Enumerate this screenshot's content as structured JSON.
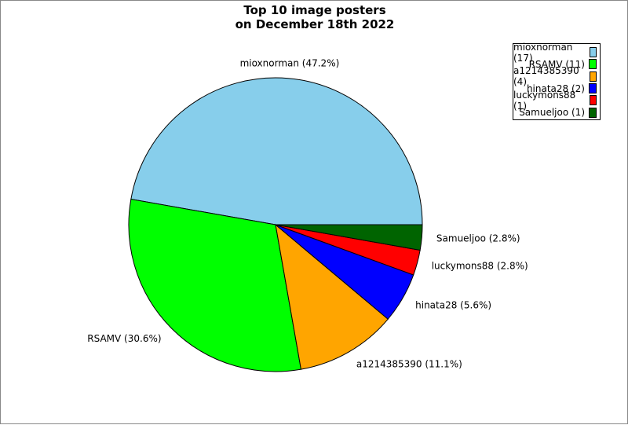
{
  "chart_data": {
    "type": "pie",
    "title": "Top 10 image posters\non December 18th 2022",
    "title_lines": [
      "Top 10 image posters",
      "on December 18th 2022"
    ],
    "slices": [
      {
        "name": "mioxnorman",
        "value": 17,
        "percent": "47.2%",
        "label": "mioxnorman (47.2%)",
        "legend": "mioxnorman (17)",
        "color": "#87ceeb"
      },
      {
        "name": "RSAMV",
        "value": 11,
        "percent": "30.6%",
        "label": "RSAMV (30.6%)",
        "legend": "RSAMV (11)",
        "color": "#00ff00"
      },
      {
        "name": "a1214385390",
        "value": 4,
        "percent": "11.1%",
        "label": "a1214385390 (11.1%)",
        "legend": "a1214385390 (4)",
        "color": "#ffa500"
      },
      {
        "name": "hinata28",
        "value": 2,
        "percent": "5.6%",
        "label": "hinata28 (5.6%)",
        "legend": "hinata28 (2)",
        "color": "#0000ff"
      },
      {
        "name": "luckymons88",
        "value": 1,
        "percent": "2.8%",
        "label": "luckymons88 (2.8%)",
        "legend": "luckymons88 (1)",
        "color": "#ff0000"
      },
      {
        "name": "Samueljoo",
        "value": 1,
        "percent": "2.8%",
        "label": "Samueljoo (2.8%)",
        "legend": "Samueljoo (1)",
        "color": "#006400"
      }
    ],
    "start_angle_deg": 0,
    "direction": "counterclockwise",
    "legend_position": "top-right"
  }
}
